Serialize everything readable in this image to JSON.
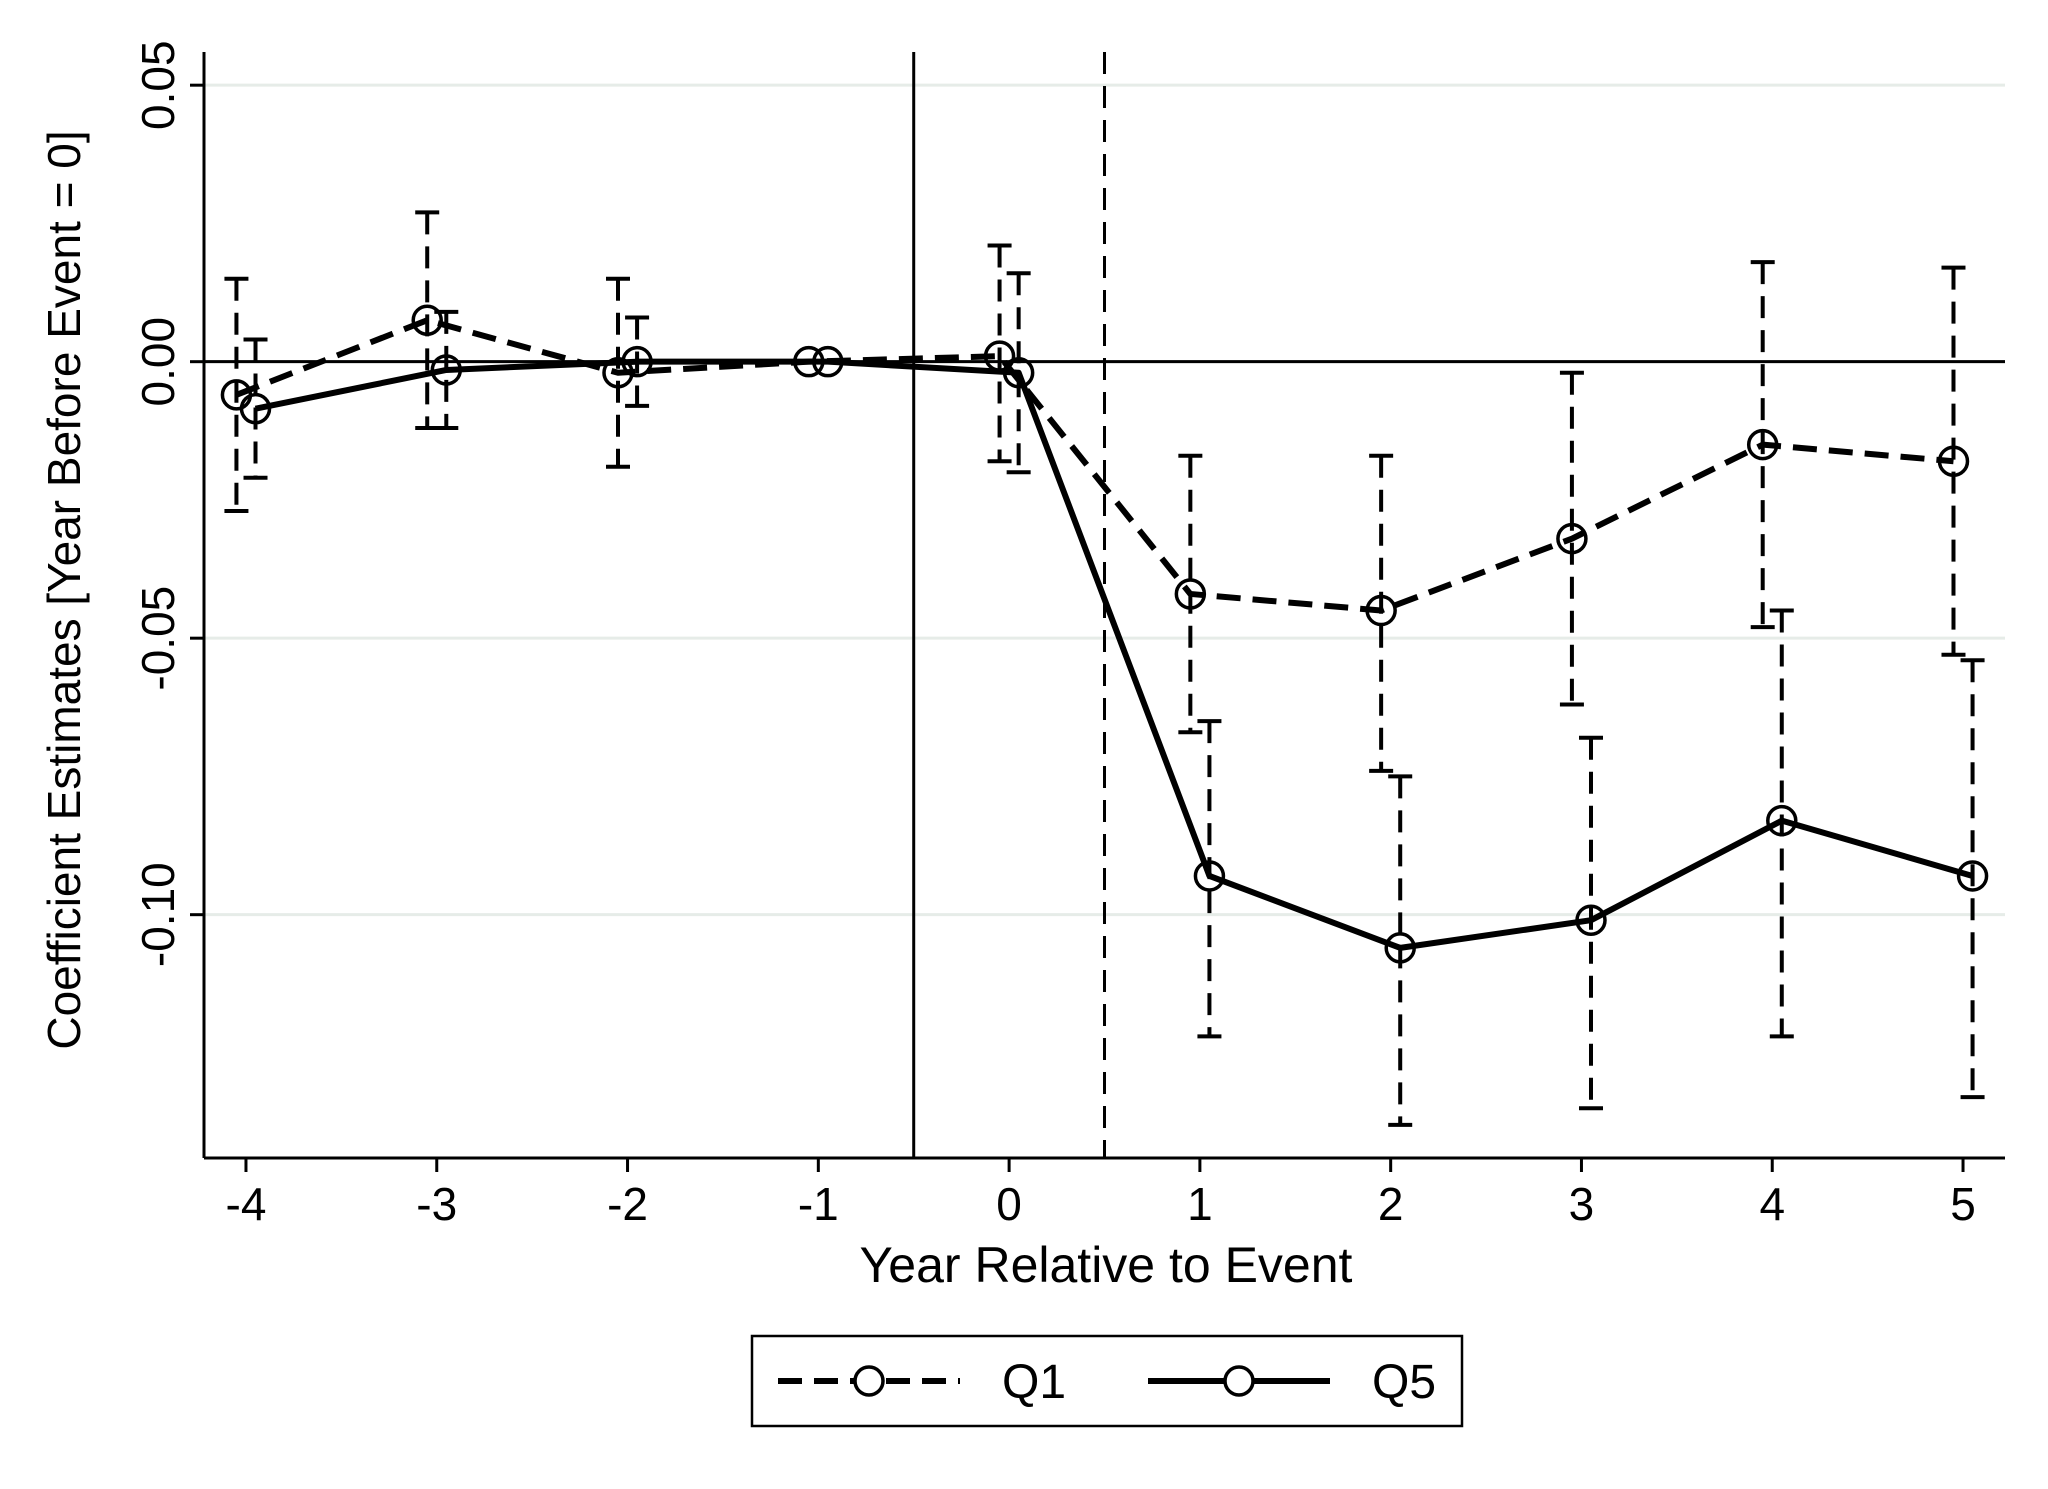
{
  "chart_data": {
    "type": "line",
    "title": "",
    "xlabel": "Year Relative to Event",
    "ylabel": "Coefficient Estimates [Year Before Event = 0]",
    "x": [
      -4,
      -3,
      -2,
      -1,
      0,
      1,
      2,
      3,
      4,
      5
    ],
    "xticks": [
      "-4",
      "-3",
      "-2",
      "-1",
      "0",
      "1",
      "2",
      "3",
      "4",
      "5"
    ],
    "yticks": [
      {
        "value": 0.05,
        "label": "0.05"
      },
      {
        "value": 0.0,
        "label": "0.00"
      },
      {
        "value": -0.05,
        "label": "-0.05"
      },
      {
        "value": -0.1,
        "label": "-0.10"
      }
    ],
    "xlim": [
      -4.22,
      5.22
    ],
    "ylim": [
      -0.144,
      0.056
    ],
    "reference_lines": {
      "horizontal": [
        0
      ],
      "vertical_solid": [
        -0.5
      ],
      "vertical_dashed": [
        0.5
      ]
    },
    "grid": "horizontal",
    "legend_position": "bottom",
    "series": [
      {
        "name": "Q1",
        "style": "dashed",
        "x_offset": -0.05,
        "values": [
          -0.006,
          0.0075,
          -0.002,
          0.0,
          0.001,
          -0.042,
          -0.045,
          -0.032,
          -0.015,
          -0.018
        ],
        "ci_low": [
          -0.027,
          -0.012,
          -0.019,
          null,
          -0.018,
          -0.067,
          -0.074,
          -0.062,
          -0.048,
          -0.053
        ],
        "ci_high": [
          0.015,
          0.027,
          0.015,
          null,
          0.021,
          -0.017,
          -0.017,
          -0.002,
          0.018,
          0.017
        ]
      },
      {
        "name": "Q5",
        "style": "solid",
        "x_offset": 0.05,
        "values": [
          -0.0085,
          -0.0015,
          0.0,
          0.0,
          -0.002,
          -0.093,
          -0.106,
          -0.101,
          -0.083,
          -0.093
        ],
        "ci_low": [
          -0.021,
          -0.012,
          -0.008,
          null,
          -0.02,
          -0.122,
          -0.138,
          -0.135,
          -0.122,
          -0.133
        ],
        "ci_high": [
          0.004,
          0.009,
          0.008,
          null,
          0.016,
          -0.065,
          -0.075,
          -0.068,
          -0.045,
          -0.054
        ]
      }
    ],
    "colors": {
      "line": "#000000",
      "grid": "#e6ece8",
      "background": "#ffffff"
    }
  }
}
